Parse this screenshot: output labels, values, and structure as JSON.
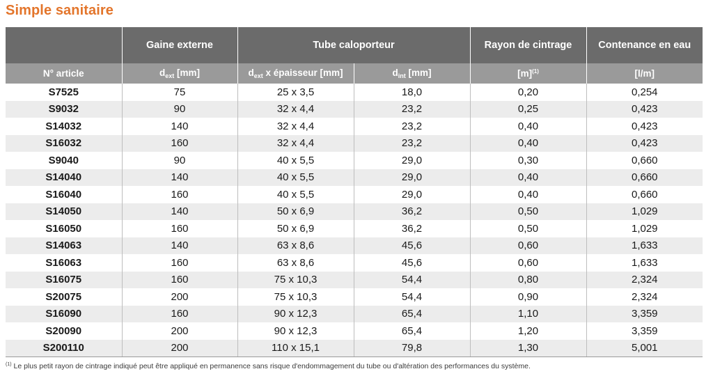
{
  "title": "Simple sanitaire",
  "header_groups": {
    "gaine": "Gaine externe",
    "tube": "Tube caloporteur",
    "rayon": "Rayon de cintrage",
    "contenance": "Contenance en eau"
  },
  "columns": {
    "article": "N° article",
    "gaine_d": "d",
    "gaine_sub": "ext",
    "gaine_unit": " [mm]",
    "tube_d": "d",
    "tube_sub": "ext",
    "tube_rest": " x épaisseur [mm]",
    "dint_d": "d",
    "dint_sub": "int",
    "dint_unit": " [mm]",
    "rayon_unit": "[m]",
    "rayon_note": "(1)",
    "contenance_unit": "[l/m]"
  },
  "rows": [
    [
      "S7525",
      "75",
      "25 x 3,5",
      "18,0",
      "0,20",
      "0,254"
    ],
    [
      "S9032",
      "90",
      "32 x 4,4",
      "23,2",
      "0,25",
      "0,423"
    ],
    [
      "S14032",
      "140",
      "32 x 4,4",
      "23,2",
      "0,40",
      "0,423"
    ],
    [
      "S16032",
      "160",
      "32 x 4,4",
      "23,2",
      "0,40",
      "0,423"
    ],
    [
      "S9040",
      "90",
      "40 x 5,5",
      "29,0",
      "0,30",
      "0,660"
    ],
    [
      "S14040",
      "140",
      "40 x 5,5",
      "29,0",
      "0,40",
      "0,660"
    ],
    [
      "S16040",
      "160",
      "40 x 5,5",
      "29,0",
      "0,40",
      "0,660"
    ],
    [
      "S14050",
      "140",
      "50 x 6,9",
      "36,2",
      "0,50",
      "1,029"
    ],
    [
      "S16050",
      "160",
      "50 x 6,9",
      "36,2",
      "0,50",
      "1,029"
    ],
    [
      "S14063",
      "140",
      "63 x 8,6",
      "45,6",
      "0,60",
      "1,633"
    ],
    [
      "S16063",
      "160",
      "63 x 8,6",
      "45,6",
      "0,60",
      "1,633"
    ],
    [
      "S16075",
      "160",
      "75 x 10,3",
      "54,4",
      "0,80",
      "2,324"
    ],
    [
      "S20075",
      "200",
      "75 x 10,3",
      "54,4",
      "0,90",
      "2,324"
    ],
    [
      "S16090",
      "160",
      "90 x 12,3",
      "65,4",
      "1,10",
      "3,359"
    ],
    [
      "S20090",
      "200",
      "90 x 12,3",
      "65,4",
      "1,20",
      "3,359"
    ],
    [
      "S200110",
      "200",
      "110 x 15,1",
      "79,8",
      "1,30",
      "5,001"
    ]
  ],
  "footnote": {
    "mark": "(1)",
    "text": " Le plus petit rayon de cintrage indiqué peut être appliqué en permanence sans risque d'endommagement du tube ou d'altération des performances du système."
  },
  "colors": {
    "title": "#e3752b",
    "header_dark": "#6b6b6b",
    "header_light": "#9a9a9a",
    "row_alt": "#ececec"
  }
}
